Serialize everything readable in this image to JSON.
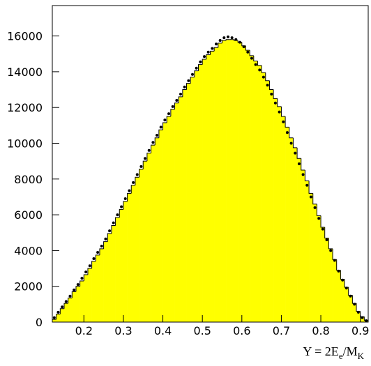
{
  "chart_data": {
    "type": "histogram",
    "xlabel_parts": [
      "Y = 2E",
      "e",
      "/M",
      "K"
    ],
    "bins": [
      0.12,
      0.13,
      0.14,
      0.15,
      0.16,
      0.17,
      0.18,
      0.19,
      0.2,
      0.21,
      0.22,
      0.23,
      0.24,
      0.25,
      0.26,
      0.27,
      0.28,
      0.29,
      0.3,
      0.31,
      0.32,
      0.33,
      0.34,
      0.35,
      0.36,
      0.37,
      0.38,
      0.39,
      0.4,
      0.41,
      0.42,
      0.43,
      0.44,
      0.45,
      0.46,
      0.47,
      0.48,
      0.49,
      0.5,
      0.51,
      0.52,
      0.53,
      0.54,
      0.55,
      0.56,
      0.57,
      0.58,
      0.59,
      0.6,
      0.61,
      0.62,
      0.63,
      0.64,
      0.65,
      0.66,
      0.67,
      0.68,
      0.69,
      0.7,
      0.71,
      0.72,
      0.73,
      0.74,
      0.75,
      0.76,
      0.77,
      0.78,
      0.79,
      0.8,
      0.81,
      0.82,
      0.83,
      0.84,
      0.85,
      0.86,
      0.87,
      0.88,
      0.89,
      0.9,
      0.91,
      0.92
    ],
    "counts": [
      150,
      450,
      750,
      1050,
      1350,
      1700,
      2000,
      2300,
      2650,
      3000,
      3400,
      3750,
      4100,
      4500,
      4950,
      5400,
      5850,
      6300,
      6750,
      7200,
      7650,
      8100,
      8550,
      9000,
      9450,
      9900,
      10300,
      10750,
      11150,
      11500,
      11900,
      12250,
      12600,
      13000,
      13350,
      13700,
      14050,
      14400,
      14700,
      14950,
      15150,
      15350,
      15600,
      15750,
      15800,
      15800,
      15750,
      15650,
      15450,
      15200,
      14900,
      14600,
      14350,
      13950,
      13500,
      13000,
      12500,
      12050,
      11500,
      10900,
      10300,
      9750,
      9150,
      8500,
      7900,
      7200,
      6600,
      5950,
      5300,
      4700,
      4100,
      3500,
      2900,
      2400,
      1950,
      1500,
      1050,
      600,
      300,
      100
    ],
    "color": "#ffff00",
    "points": {
      "color": "#000000",
      "values": [
        250,
        550,
        850,
        1150,
        1450,
        1800,
        2100,
        2450,
        2800,
        3150,
        3550,
        3900,
        4250,
        4650,
        5100,
        5550,
        6000,
        6450,
        6900,
        7350,
        7800,
        8250,
        8700,
        9150,
        9600,
        10050,
        10450,
        10900,
        11300,
        11650,
        12050,
        12400,
        12750,
        13150,
        13500,
        13850,
        14200,
        14550,
        14850,
        15100,
        15300,
        15550,
        15750,
        15900,
        15950,
        15900,
        15800,
        15650,
        15400,
        15100,
        14750,
        14400,
        14100,
        13700,
        13250,
        12750,
        12250,
        11750,
        11200,
        10600,
        10000,
        9450,
        8850,
        8250,
        7650,
        7000,
        6400,
        5800,
        5200,
        4600,
        4000,
        3450,
        2850,
        2350,
        1900,
        1450,
        1000,
        550,
        250,
        80
      ]
    },
    "xlim": [
      0.12,
      0.92
    ],
    "ylim": [
      0,
      17700
    ],
    "xticks": [
      0.2,
      0.3,
      0.4,
      0.5,
      0.6,
      0.7,
      0.8,
      0.9
    ],
    "yticks": [
      0,
      2000,
      4000,
      6000,
      8000,
      10000,
      12000,
      14000,
      16000
    ]
  }
}
